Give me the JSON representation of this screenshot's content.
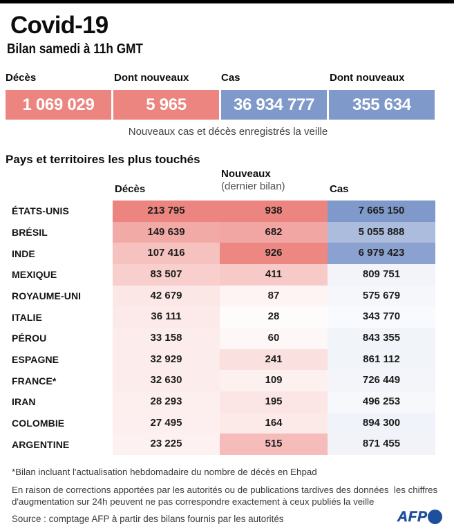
{
  "colors": {
    "red": "#EC8580",
    "blue": "#8099CB",
    "top_bar": "#000000",
    "logo_blue": "#1E4F9D"
  },
  "header": {
    "title": "Covid-19",
    "subtitle": "Bilan samedi à 11h GMT"
  },
  "summary": {
    "boxes": [
      {
        "label": "Décès",
        "value": "1 069 029",
        "color": "red"
      },
      {
        "label": "Dont nouveaux",
        "value": "5 965",
        "color": "red"
      },
      {
        "label": "Cas",
        "value": "36 934 777",
        "color": "blue"
      },
      {
        "label": "Dont nouveaux",
        "value": "355 634",
        "color": "blue"
      }
    ],
    "caption": "Nouveaux cas et décès enregistrés la veille"
  },
  "table": {
    "section_title": "Pays et territoires les plus touchés",
    "columns": [
      {
        "label": "Décès",
        "sublabel": ""
      },
      {
        "label": "Nouveaux",
        "sublabel": "(dernier bilan)"
      },
      {
        "label": "Cas",
        "sublabel": ""
      }
    ],
    "rows": [
      {
        "country": "ÉTATS-UNIS",
        "deces": "213 795",
        "nouveaux": "938",
        "cas": "7 665 150"
      },
      {
        "country": "BRÉSIL",
        "deces": "149 639",
        "nouveaux": "682",
        "cas": "5 055 888"
      },
      {
        "country": "INDE",
        "deces": "107 416",
        "nouveaux": "926",
        "cas": "6 979 423"
      },
      {
        "country": "MEXIQUE",
        "deces": "83 507",
        "nouveaux": "411",
        "cas": "809 751"
      },
      {
        "country": "ROYAUME-UNI",
        "deces": "42 679",
        "nouveaux": "87",
        "cas": "575 679"
      },
      {
        "country": "ITALIE",
        "deces": "36 111",
        "nouveaux": "28",
        "cas": "343 770"
      },
      {
        "country": "PÉROU",
        "deces": "33 158",
        "nouveaux": "60",
        "cas": "843 355"
      },
      {
        "country": "ESPAGNE",
        "deces": "32 929",
        "nouveaux": "241",
        "cas": "861 112"
      },
      {
        "country": "FRANCE*",
        "deces": "32 630",
        "nouveaux": "109",
        "cas": "726 449"
      },
      {
        "country": "IRAN",
        "deces": "28 293",
        "nouveaux": "195",
        "cas": "496 253"
      },
      {
        "country": "COLOMBIE",
        "deces": "27 495",
        "nouveaux": "164",
        "cas": "894 300"
      },
      {
        "country": "ARGENTINE",
        "deces": "23 225",
        "nouveaux": "515",
        "cas": "871 455"
      }
    ]
  },
  "footnotes": {
    "ehpad": "*Bilan incluant l'actualisation hebdomadaire du nombre de décès en Ehpad",
    "corrections_line1": "En raison de corrections apportées par les autorités ou de publications tardives des données  les chiffres",
    "corrections_line2": "d'augmentation sur 24h peuvent ne pas correspondre exactement à ceux publiés la veille"
  },
  "source": "Source : comptage AFP à partir des bilans fournis par les autorités",
  "logo": {
    "text": "AFP"
  },
  "chart_data": {
    "type": "table",
    "title": "Covid-19 — Bilan samedi à 11h GMT",
    "summary": {
      "deces_total": 1069029,
      "deces_nouveaux": 5965,
      "cas_total": 36934777,
      "cas_nouveaux": 355634,
      "note": "Nouveaux cas et décès enregistrés la veille"
    },
    "section_title": "Pays et territoires les plus touchés",
    "columns": [
      "Décès",
      "Nouveaux (dernier bilan)",
      "Cas"
    ],
    "countries": [
      "ÉTATS-UNIS",
      "BRÉSIL",
      "INDE",
      "MEXIQUE",
      "ROYAUME-UNI",
      "ITALIE",
      "PÉROU",
      "ESPAGNE",
      "FRANCE*",
      "IRAN",
      "COLOMBIE",
      "ARGENTINE"
    ],
    "series": [
      {
        "name": "Décès",
        "values": [
          213795,
          149639,
          107416,
          83507,
          42679,
          36111,
          33158,
          32929,
          32630,
          28293,
          27495,
          23225
        ]
      },
      {
        "name": "Nouveaux (dernier bilan)",
        "values": [
          938,
          682,
          926,
          411,
          87,
          28,
          60,
          241,
          109,
          195,
          164,
          515
        ]
      },
      {
        "name": "Cas",
        "values": [
          7665150,
          5055888,
          6979423,
          809751,
          575679,
          343770,
          843355,
          861112,
          726449,
          496253,
          894300,
          871455
        ]
      }
    ],
    "heatmap": "cell background = linear mix from white to column colour (red for Décès/Nouveaux, blue for Cas) scaled to column maximum",
    "legend_position": "none",
    "grid": false
  }
}
